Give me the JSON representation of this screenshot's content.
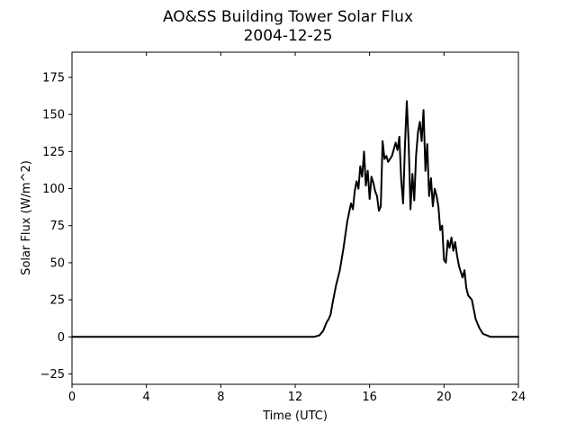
{
  "chart_data": {
    "type": "line",
    "title": [
      "AO&SS Building Tower Solar Flux",
      "2004-12-25"
    ],
    "xlabel": "Time (UTC)",
    "ylabel": "Solar Flux (W/m^2)",
    "xlim": [
      0,
      24
    ],
    "ylim": [
      -32,
      192
    ],
    "xticks": [
      0,
      4,
      8,
      12,
      16,
      20,
      24
    ],
    "yticks": [
      -25,
      0,
      25,
      50,
      75,
      100,
      125,
      150,
      175
    ],
    "grid": false,
    "legend": "none",
    "line_color": "#000000",
    "series": [
      {
        "x": [
          0,
          13.0,
          13.3,
          13.5,
          13.7,
          13.8,
          13.9,
          14.0,
          14.2,
          14.4,
          14.6,
          14.8,
          15.0,
          15.1,
          15.2,
          15.3,
          15.4,
          15.5,
          15.6,
          15.7,
          15.8,
          15.9,
          16.0,
          16.05,
          16.1,
          16.2,
          16.3,
          16.4,
          16.5,
          16.6,
          16.7,
          16.8,
          16.9,
          17.0,
          17.2,
          17.4,
          17.5,
          17.6,
          17.7,
          17.8,
          17.9,
          18.0,
          18.1,
          18.2,
          18.3,
          18.4,
          18.5,
          18.6,
          18.7,
          18.8,
          18.9,
          19.0,
          19.1,
          19.2,
          19.3,
          19.4,
          19.5,
          19.6,
          19.7,
          19.8,
          19.9,
          20.0,
          20.1,
          20.2,
          20.3,
          20.4,
          20.5,
          20.6,
          20.7,
          20.8,
          20.9,
          21.0,
          21.1,
          21.2,
          21.3,
          21.5,
          21.7,
          21.9,
          22.1,
          22.3,
          22.5,
          22.7,
          23.0,
          24
        ],
        "y": [
          0,
          0,
          1,
          4,
          10,
          12,
          15,
          22,
          35,
          45,
          60,
          78,
          90,
          86,
          98,
          105,
          100,
          115,
          108,
          125,
          102,
          112,
          93,
          100,
          108,
          104,
          98,
          95,
          85,
          88,
          132,
          120,
          122,
          118,
          122,
          131,
          126,
          135,
          106,
          90,
          128,
          159,
          130,
          86,
          110,
          92,
          122,
          138,
          145,
          132,
          153,
          112,
          130,
          95,
          107,
          88,
          100,
          95,
          88,
          72,
          75,
          52,
          50,
          65,
          60,
          67,
          58,
          64,
          55,
          48,
          44,
          40,
          45,
          33,
          28,
          25,
          12,
          6,
          2,
          1,
          0,
          0,
          0,
          0
        ]
      }
    ]
  }
}
